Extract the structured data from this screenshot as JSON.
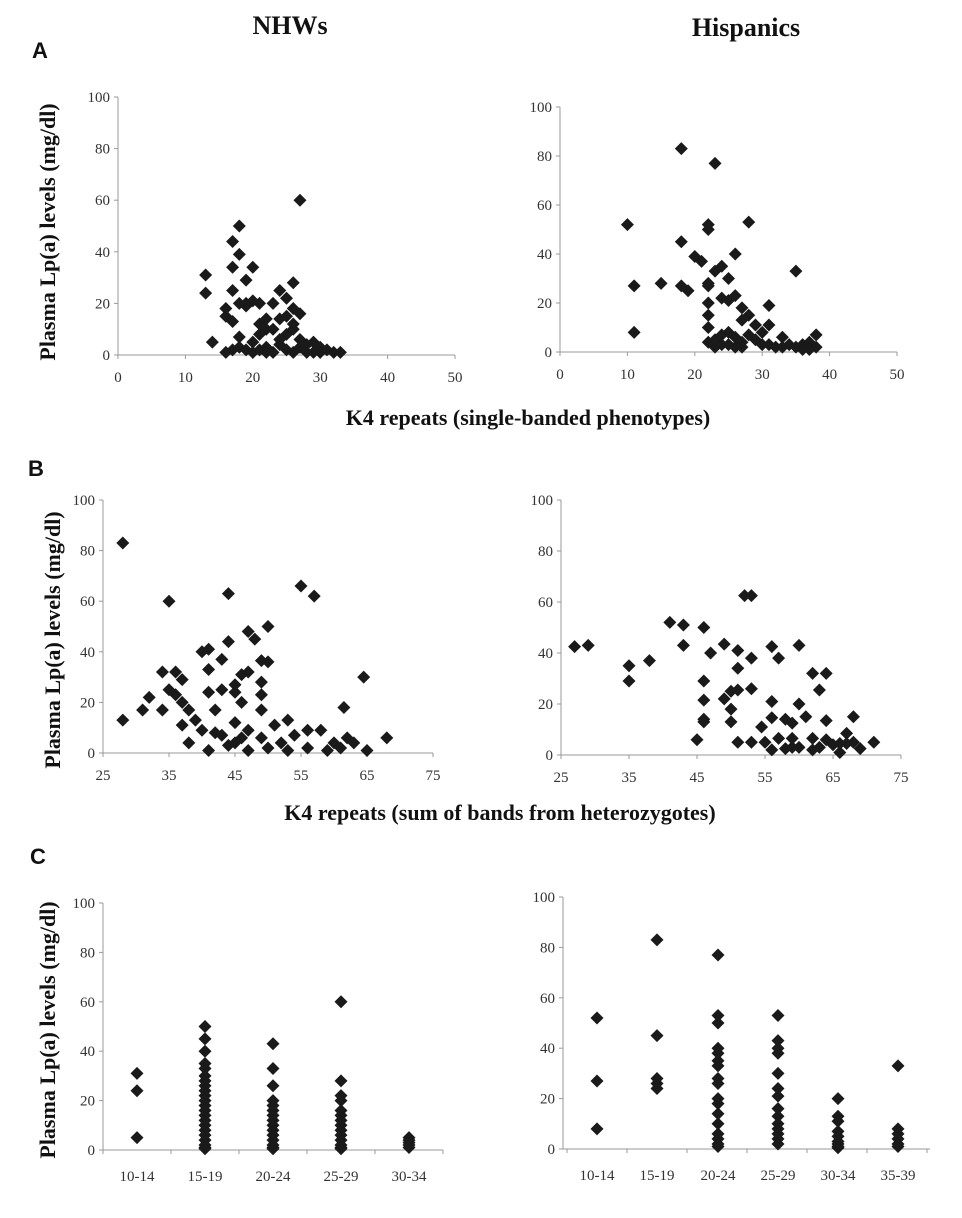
{
  "headers": {
    "left": "NHWs",
    "right": "Hispanics"
  },
  "panel_labels": [
    "A",
    "B",
    "C"
  ],
  "ylabel": "Plasma Lp(a) levels (mg/dl)",
  "xlabels": {
    "A": "K4 repeats (single-banded phenotypes)",
    "B": "K4 repeats (sum of bands from heterozygotes)"
  },
  "colors": {
    "marker": "#1a1a1a",
    "axis": "#999999"
  },
  "chart_data": [
    {
      "id": "A-NHW",
      "type": "scatter",
      "marker": "diamond",
      "xlim": [
        0,
        50
      ],
      "ylim": [
        0,
        100
      ],
      "xticks": [
        0,
        10,
        20,
        30,
        40,
        50
      ],
      "yticks": [
        0,
        20,
        40,
        60,
        80,
        100
      ],
      "points": [
        [
          13,
          31
        ],
        [
          13,
          24
        ],
        [
          14,
          5
        ],
        [
          16,
          1
        ],
        [
          17,
          44
        ],
        [
          18,
          50
        ],
        [
          18,
          39
        ],
        [
          17,
          34
        ],
        [
          20,
          34
        ],
        [
          19,
          29
        ],
        [
          17,
          25
        ],
        [
          19,
          19
        ],
        [
          16,
          18
        ],
        [
          16,
          15
        ],
        [
          17,
          13
        ],
        [
          18,
          20
        ],
        [
          19,
          20
        ],
        [
          20,
          21
        ],
        [
          21,
          20
        ],
        [
          22,
          10
        ],
        [
          21,
          8
        ],
        [
          18,
          7
        ],
        [
          20,
          5
        ],
        [
          22,
          3
        ],
        [
          23,
          20
        ],
        [
          24,
          25
        ],
        [
          25,
          22
        ],
        [
          26,
          28
        ],
        [
          26,
          18
        ],
        [
          27,
          16
        ],
        [
          24,
          14
        ],
        [
          23,
          10
        ],
        [
          25,
          8
        ],
        [
          26,
          12
        ],
        [
          27,
          6
        ],
        [
          28,
          4
        ],
        [
          29,
          5
        ],
        [
          30,
          3
        ],
        [
          31,
          2
        ],
        [
          32,
          1
        ],
        [
          33,
          1
        ],
        [
          24,
          4
        ],
        [
          25,
          2
        ],
        [
          26,
          1
        ],
        [
          27,
          3
        ],
        [
          28,
          1
        ],
        [
          29,
          1
        ],
        [
          30,
          1
        ],
        [
          19,
          2
        ],
        [
          20,
          1
        ],
        [
          21,
          2
        ],
        [
          22,
          1
        ],
        [
          23,
          1
        ],
        [
          24,
          6
        ],
        [
          27,
          60
        ],
        [
          26,
          10
        ],
        [
          25,
          15
        ],
        [
          22,
          14
        ],
        [
          21,
          12
        ],
        [
          18,
          3
        ],
        [
          17,
          2
        ]
      ]
    },
    {
      "id": "A-HIS",
      "type": "scatter",
      "marker": "diamond",
      "xlim": [
        0,
        50
      ],
      "ylim": [
        0,
        100
      ],
      "xticks": [
        0,
        10,
        20,
        30,
        40,
        50
      ],
      "yticks": [
        0,
        20,
        40,
        60,
        80,
        100
      ],
      "points": [
        [
          10,
          52
        ],
        [
          11,
          27
        ],
        [
          11,
          8
        ],
        [
          15,
          28
        ],
        [
          18,
          83
        ],
        [
          18,
          45
        ],
        [
          18,
          27
        ],
        [
          19,
          25
        ],
        [
          20,
          39
        ],
        [
          21,
          37
        ],
        [
          22,
          52
        ],
        [
          22,
          50
        ],
        [
          22,
          28
        ],
        [
          22,
          27
        ],
        [
          22,
          20
        ],
        [
          22,
          15
        ],
        [
          22,
          10
        ],
        [
          23,
          77
        ],
        [
          23,
          33
        ],
        [
          24,
          35
        ],
        [
          24,
          22
        ],
        [
          25,
          30
        ],
        [
          25,
          21
        ],
        [
          26,
          40
        ],
        [
          26,
          23
        ],
        [
          27,
          18
        ],
        [
          27,
          13
        ],
        [
          28,
          53
        ],
        [
          28,
          15
        ],
        [
          29,
          11
        ],
        [
          30,
          8
        ],
        [
          31,
          19
        ],
        [
          31,
          11
        ],
        [
          33,
          6
        ],
        [
          35,
          33
        ],
        [
          23,
          5
        ],
        [
          24,
          7
        ],
        [
          25,
          8
        ],
        [
          26,
          6
        ],
        [
          27,
          4
        ],
        [
          28,
          7
        ],
        [
          29,
          5
        ],
        [
          30,
          3
        ],
        [
          31,
          3
        ],
        [
          32,
          2
        ],
        [
          33,
          2
        ],
        [
          34,
          3
        ],
        [
          35,
          2
        ],
        [
          36,
          3
        ],
        [
          37,
          4
        ],
        [
          38,
          7
        ],
        [
          38,
          2
        ],
        [
          22,
          4
        ],
        [
          23,
          2
        ],
        [
          24,
          3
        ],
        [
          25,
          3
        ],
        [
          26,
          2
        ],
        [
          27,
          2
        ],
        [
          36,
          1
        ],
        [
          37,
          1
        ]
      ]
    },
    {
      "id": "B-NHW",
      "type": "scatter",
      "marker": "diamond",
      "xlim": [
        25,
        75
      ],
      "ylim": [
        0,
        100
      ],
      "xticks": [
        25,
        35,
        45,
        55,
        65,
        75
      ],
      "yticks": [
        0,
        20,
        40,
        60,
        80,
        100
      ],
      "points": [
        [
          28,
          83
        ],
        [
          35,
          60
        ],
        [
          44,
          63
        ],
        [
          55,
          66
        ],
        [
          57,
          62
        ],
        [
          50,
          50
        ],
        [
          47,
          48
        ],
        [
          48,
          45
        ],
        [
          44,
          44
        ],
        [
          40,
          40
        ],
        [
          41,
          41
        ],
        [
          43,
          37
        ],
        [
          49,
          36.5
        ],
        [
          50,
          36
        ],
        [
          34,
          32
        ],
        [
          36,
          32
        ],
        [
          41,
          33
        ],
        [
          37,
          29
        ],
        [
          35,
          25
        ],
        [
          36,
          23
        ],
        [
          32,
          22
        ],
        [
          31,
          17
        ],
        [
          34,
          17
        ],
        [
          37,
          20
        ],
        [
          38,
          17
        ],
        [
          28,
          13
        ],
        [
          37,
          11
        ],
        [
          39,
          13
        ],
        [
          40,
          9
        ],
        [
          42,
          17
        ],
        [
          41,
          24
        ],
        [
          43,
          25
        ],
        [
          45,
          27
        ],
        [
          46,
          31
        ],
        [
          47,
          32
        ],
        [
          49,
          28
        ],
        [
          49,
          23
        ],
        [
          45,
          24
        ],
        [
          46,
          20
        ],
        [
          64.5,
          30
        ],
        [
          61.5,
          18
        ],
        [
          68,
          6
        ],
        [
          65,
          1
        ],
        [
          38,
          4
        ],
        [
          41,
          1
        ],
        [
          43,
          7
        ],
        [
          45,
          12
        ],
        [
          47,
          9
        ],
        [
          49,
          17
        ],
        [
          51,
          11
        ],
        [
          53,
          13
        ],
        [
          52,
          4
        ],
        [
          54,
          7
        ],
        [
          56,
          9
        ],
        [
          58,
          9
        ],
        [
          60,
          4
        ],
        [
          62,
          6
        ],
        [
          63,
          4
        ],
        [
          44,
          3
        ],
        [
          47,
          1
        ],
        [
          50,
          2
        ],
        [
          53,
          1
        ],
        [
          56,
          2
        ],
        [
          59,
          1
        ],
        [
          61,
          2
        ],
        [
          42,
          8
        ],
        [
          46,
          6
        ],
        [
          49,
          6
        ],
        [
          45,
          4
        ]
      ]
    },
    {
      "id": "B-HIS",
      "type": "scatter",
      "marker": "diamond",
      "xlim": [
        25,
        75
      ],
      "ylim": [
        0,
        100
      ],
      "xticks": [
        25,
        35,
        45,
        55,
        65,
        75
      ],
      "yticks": [
        0,
        20,
        40,
        60,
        80,
        100
      ],
      "points": [
        [
          27,
          42.5
        ],
        [
          29,
          43
        ],
        [
          35,
          35
        ],
        [
          35,
          29
        ],
        [
          38,
          37
        ],
        [
          41,
          52
        ],
        [
          43,
          51
        ],
        [
          43,
          43
        ],
        [
          46,
          50
        ],
        [
          47,
          40
        ],
        [
          49,
          43.5
        ],
        [
          51,
          41
        ],
        [
          53,
          38
        ],
        [
          51,
          34
        ],
        [
          46,
          29
        ],
        [
          46,
          21.5
        ],
        [
          46,
          14
        ],
        [
          46,
          13
        ],
        [
          45,
          6
        ],
        [
          49,
          22
        ],
        [
          50,
          25
        ],
        [
          51,
          25.5
        ],
        [
          53,
          26
        ],
        [
          50,
          18
        ],
        [
          50,
          13
        ],
        [
          54.5,
          11
        ],
        [
          51,
          5
        ],
        [
          53,
          5
        ],
        [
          52,
          62.5
        ],
        [
          53,
          62.5
        ],
        [
          56,
          42.5
        ],
        [
          57,
          38
        ],
        [
          60,
          43
        ],
        [
          56,
          21
        ],
        [
          56,
          14.6
        ],
        [
          58,
          14
        ],
        [
          59,
          12.5
        ],
        [
          60,
          20
        ],
        [
          61,
          15
        ],
        [
          62,
          32
        ],
        [
          64,
          32
        ],
        [
          63,
          25.5
        ],
        [
          64,
          13.5
        ],
        [
          68,
          15
        ],
        [
          71,
          5
        ],
        [
          55,
          5
        ],
        [
          56,
          2
        ],
        [
          57,
          6.5
        ],
        [
          58,
          2.5
        ],
        [
          59,
          6.5
        ],
        [
          60,
          3
        ],
        [
          62,
          6.5
        ],
        [
          62,
          2
        ],
        [
          63,
          3
        ],
        [
          64,
          6
        ],
        [
          65,
          4
        ],
        [
          66,
          1
        ],
        [
          67,
          8.5
        ],
        [
          67,
          4.5
        ],
        [
          68,
          5
        ],
        [
          69,
          2.5
        ],
        [
          66,
          4.5
        ],
        [
          59,
          3
        ]
      ]
    },
    {
      "id": "C-NHW",
      "type": "scatter",
      "marker": "diamond",
      "ylim": [
        0,
        100
      ],
      "yticks": [
        0,
        20,
        40,
        60,
        80,
        100
      ],
      "categories": [
        "10-14",
        "15-19",
        "20-24",
        "25-29",
        "30-34"
      ],
      "values": [
        [
          31,
          24,
          5
        ],
        [
          50,
          45,
          40,
          35,
          33,
          30,
          28,
          26,
          24,
          22,
          20,
          18,
          16,
          14,
          12,
          10,
          8,
          6,
          4,
          2,
          1,
          0.5
        ],
        [
          43,
          33,
          26,
          20,
          18,
          16,
          14,
          12,
          10,
          8,
          6,
          4,
          2,
          1,
          0.5
        ],
        [
          60,
          28,
          22,
          20,
          16,
          14,
          12,
          10,
          8,
          6,
          4,
          2,
          1,
          0.5
        ],
        [
          5,
          4,
          3,
          2,
          1
        ]
      ]
    },
    {
      "id": "C-HIS",
      "type": "scatter",
      "marker": "diamond",
      "ylim": [
        0,
        100
      ],
      "yticks": [
        0,
        20,
        40,
        60,
        80,
        100
      ],
      "categories": [
        "10-14",
        "15-19",
        "20-24",
        "25-29",
        "30-34",
        "35-39"
      ],
      "values": [
        [
          52,
          27,
          8
        ],
        [
          83,
          45,
          28,
          26,
          24
        ],
        [
          77,
          53,
          50,
          40,
          38,
          35,
          33,
          28,
          26,
          20,
          18,
          14,
          10,
          6,
          4,
          2,
          1
        ],
        [
          53,
          43,
          40,
          38,
          30,
          24,
          21,
          16,
          13,
          10,
          8,
          6,
          4,
          2
        ],
        [
          20,
          13,
          11,
          7,
          5,
          3,
          2,
          1,
          0.5
        ],
        [
          33,
          8,
          6,
          4,
          2,
          1
        ]
      ]
    }
  ]
}
